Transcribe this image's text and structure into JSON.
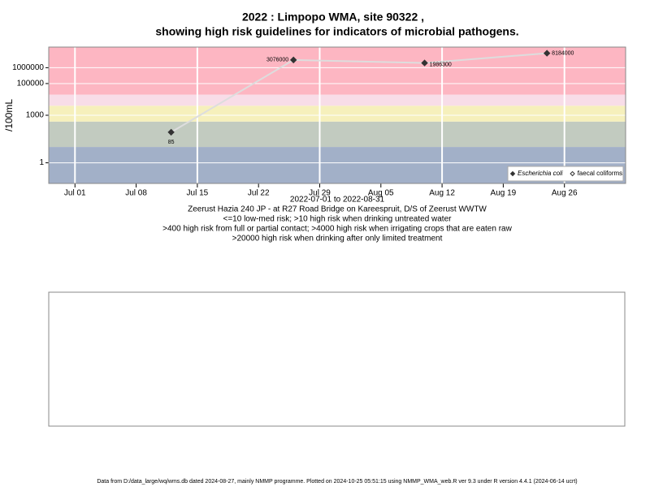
{
  "chart_data": {
    "type": "line",
    "title": "2022 : Limpopo WMA, site 90322 ,",
    "subtitle": "showing high risk guidelines for indicators of microbial pathogens.",
    "y_label": "/100mL",
    "x_label": "2022-07-01 to 2022-08-31",
    "notes": [
      "Zeerust Hazia 240 JP - at R27 Road Bridge on Kareespruit, D/S of Zeerust WWTW",
      "<=10 low-med risk; >10 high risk when drinking untreated water",
      ">400 high risk from full or partial contact; >4000 high risk when irrigating crops that are eaten raw",
      ">20000 high risk when drinking after only limited treatment"
    ],
    "footer": "Data from D:/data_large/wq/wms.db dated 2024-08-27, mainly NMMP programme. Plotted on 2024-10-25 05:51:15 using NMMP_WMA_web.R ver 9.3 under R version 4.4.1 (2024-06-14 ucrt)",
    "x": [
      "2022-07-12",
      "2022-07-26",
      "2022-08-10",
      "2022-08-24"
    ],
    "series": [
      {
        "name": "Escherichia coli",
        "color": "#333333",
        "values": [
          85,
          3076000,
          1986300,
          8184000
        ]
      },
      {
        "name": "faecal coliforms",
        "color": "#333333",
        "values": [
          null,
          null,
          null,
          null
        ]
      }
    ],
    "line_color": "#dddddd",
    "log_y": true,
    "ylim": [
      0.05,
      20000000
    ],
    "yticks": [
      1,
      1000,
      100000,
      1000000
    ],
    "xlim": [
      "2022-06-28",
      "2022-09-02"
    ],
    "xticks": [
      {
        "value": "2022-07-01",
        "label": "Jul 01"
      },
      {
        "value": "2022-07-08",
        "label": "Jul 08"
      },
      {
        "value": "2022-07-15",
        "label": "Jul 15"
      },
      {
        "value": "2022-07-22",
        "label": "Jul 22"
      },
      {
        "value": "2022-07-29",
        "label": "Jul 29"
      },
      {
        "value": "2022-08-05",
        "label": "Aug 05"
      },
      {
        "value": "2022-08-12",
        "label": "Aug 12"
      },
      {
        "value": "2022-08-19",
        "label": "Aug 19"
      },
      {
        "value": "2022-08-26",
        "label": "Aug 26"
      }
    ],
    "guidelines": [
      10,
      400,
      4000,
      20000
    ],
    "band_colors": [
      "#a2b0c8",
      "#c2cbc0",
      "#f6f0bc",
      "#f8dde8",
      "#fdb6c2"
    ],
    "grid": true,
    "legend": "bottom-right"
  }
}
